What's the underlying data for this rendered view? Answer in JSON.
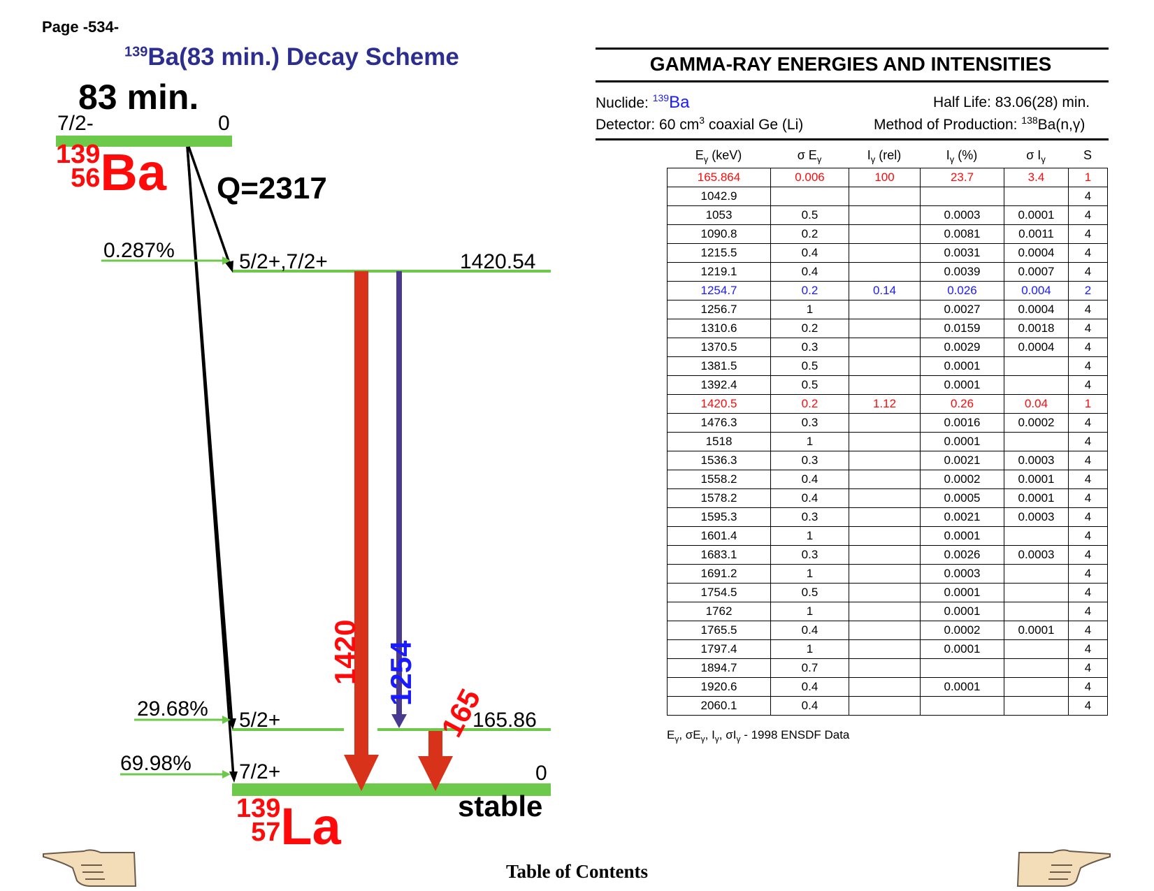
{
  "page": {
    "number": "Page -534-",
    "toc": "Table of Contents"
  },
  "scheme": {
    "title_mass": "139",
    "title_text": "Ba(83 min.) Decay Scheme",
    "half_life": "83 min.",
    "q_value": "Q=2317",
    "stable_label": "stable",
    "parent": {
      "mass": "139",
      "z": "56",
      "symbol": "Ba",
      "spin": "7/2-",
      "energy": "0"
    },
    "daughter": {
      "mass": "139",
      "z": "57",
      "symbol": "La"
    },
    "levels": [
      {
        "spin": "5/2+,7/2+",
        "energy": "1420.54",
        "branch": "0.287%"
      },
      {
        "spin": "5/2+",
        "energy": "165.86",
        "branch": "29.68%"
      },
      {
        "spin": "7/2+",
        "energy": "0",
        "branch": "69.98%"
      }
    ],
    "gammas": [
      {
        "label": "1420",
        "color": "#ff0a0a"
      },
      {
        "label": "1254",
        "color": "#1a1aff"
      },
      {
        "label": "165",
        "color": "#ff0a0a"
      }
    ],
    "colors": {
      "level": "#6cc94a",
      "strong_gamma": "#d9321a",
      "weak_gamma": "#4a3a8f",
      "accent_red": "#ff0a0a",
      "title_blue": "#2b2d8f"
    }
  },
  "table": {
    "heading": "GAMMA-RAY ENERGIES AND INTENSITIES",
    "nuclide_label": "Nuclide: ",
    "nuclide_mass": "139",
    "nuclide_symbol": "Ba",
    "half_life": "Half Life: 83.06(28) min.",
    "detector_a": "Detector: 60 cm",
    "detector_exp": "3",
    "detector_b": " coaxial Ge (Li)",
    "method_a": "Method of Production: ",
    "method_exp": "138",
    "method_b": "Ba(n,γ)",
    "columns": [
      {
        "main": "E",
        "sub": "γ",
        "tail": " (keV)"
      },
      {
        "main": "σ E",
        "sub": "γ",
        "tail": ""
      },
      {
        "main": "I",
        "sub": "γ",
        "tail": " (rel)"
      },
      {
        "main": "I",
        "sub": "γ",
        "tail": " (%)"
      },
      {
        "main": "σ I",
        "sub": "γ",
        "tail": ""
      },
      {
        "main": "S",
        "sub": "",
        "tail": ""
      }
    ],
    "rows": [
      {
        "e": "165.864",
        "se": "0.006",
        "irel": "100",
        "ipct": "23.7",
        "si": "3.4",
        "s": "1",
        "style": "red"
      },
      {
        "e": "1042.9",
        "se": "",
        "irel": "",
        "ipct": "",
        "si": "",
        "s": "4",
        "style": ""
      },
      {
        "e": "1053",
        "se": "0.5",
        "irel": "",
        "ipct": "0.0003",
        "si": "0.0001",
        "s": "4",
        "style": ""
      },
      {
        "e": "1090.8",
        "se": "0.2",
        "irel": "",
        "ipct": "0.0081",
        "si": "0.0011",
        "s": "4",
        "style": ""
      },
      {
        "e": "1215.5",
        "se": "0.4",
        "irel": "",
        "ipct": "0.0031",
        "si": "0.0004",
        "s": "4",
        "style": ""
      },
      {
        "e": "1219.1",
        "se": "0.4",
        "irel": "",
        "ipct": "0.0039",
        "si": "0.0007",
        "s": "4",
        "style": ""
      },
      {
        "e": "1254.7",
        "se": "0.2",
        "irel": "0.14",
        "ipct": "0.026",
        "si": "0.004",
        "s": "2",
        "style": "blue"
      },
      {
        "e": "1256.7",
        "se": "1",
        "irel": "",
        "ipct": "0.0027",
        "si": "0.0004",
        "s": "4",
        "style": ""
      },
      {
        "e": "1310.6",
        "se": "0.2",
        "irel": "",
        "ipct": "0.0159",
        "si": "0.0018",
        "s": "4",
        "style": ""
      },
      {
        "e": "1370.5",
        "se": "0.3",
        "irel": "",
        "ipct": "0.0029",
        "si": "0.0004",
        "s": "4",
        "style": ""
      },
      {
        "e": "1381.5",
        "se": "0.5",
        "irel": "",
        "ipct": "0.0001",
        "si": "",
        "s": "4",
        "style": ""
      },
      {
        "e": "1392.4",
        "se": "0.5",
        "irel": "",
        "ipct": "0.0001",
        "si": "",
        "s": "4",
        "style": ""
      },
      {
        "e": "1420.5",
        "se": "0.2",
        "irel": "1.12",
        "ipct": "0.26",
        "si": "0.04",
        "s": "1",
        "style": "red"
      },
      {
        "e": "1476.3",
        "se": "0.3",
        "irel": "",
        "ipct": "0.0016",
        "si": "0.0002",
        "s": "4",
        "style": ""
      },
      {
        "e": "1518",
        "se": "1",
        "irel": "",
        "ipct": "0.0001",
        "si": "",
        "s": "4",
        "style": ""
      },
      {
        "e": "1536.3",
        "se": "0.3",
        "irel": "",
        "ipct": "0.0021",
        "si": "0.0003",
        "s": "4",
        "style": ""
      },
      {
        "e": "1558.2",
        "se": "0.4",
        "irel": "",
        "ipct": "0.0002",
        "si": "0.0001",
        "s": "4",
        "style": ""
      },
      {
        "e": "1578.2",
        "se": "0.4",
        "irel": "",
        "ipct": "0.0005",
        "si": "0.0001",
        "s": "4",
        "style": ""
      },
      {
        "e": "1595.3",
        "se": "0.3",
        "irel": "",
        "ipct": "0.0021",
        "si": "0.0003",
        "s": "4",
        "style": ""
      },
      {
        "e": "1601.4",
        "se": "1",
        "irel": "",
        "ipct": "0.0001",
        "si": "",
        "s": "4",
        "style": ""
      },
      {
        "e": "1683.1",
        "se": "0.3",
        "irel": "",
        "ipct": "0.0026",
        "si": "0.0003",
        "s": "4",
        "style": ""
      },
      {
        "e": "1691.2",
        "se": "1",
        "irel": "",
        "ipct": "0.0003",
        "si": "",
        "s": "4",
        "style": ""
      },
      {
        "e": "1754.5",
        "se": "0.5",
        "irel": "",
        "ipct": "0.0001",
        "si": "",
        "s": "4",
        "style": ""
      },
      {
        "e": "1762",
        "se": "1",
        "irel": "",
        "ipct": "0.0001",
        "si": "",
        "s": "4",
        "style": ""
      },
      {
        "e": "1765.5",
        "se": "0.4",
        "irel": "",
        "ipct": "0.0002",
        "si": "0.0001",
        "s": "4",
        "style": ""
      },
      {
        "e": "1797.4",
        "se": "1",
        "irel": "",
        "ipct": "0.0001",
        "si": "",
        "s": "4",
        "style": ""
      },
      {
        "e": "1894.7",
        "se": "0.7",
        "irel": "",
        "ipct": "",
        "si": "",
        "s": "4",
        "style": ""
      },
      {
        "e": "1920.6",
        "se": "0.4",
        "irel": "",
        "ipct": "0.0001",
        "si": "",
        "s": "4",
        "style": ""
      },
      {
        "e": "2060.1",
        "se": "0.4",
        "irel": "",
        "ipct": "",
        "si": "",
        "s": "4",
        "style": ""
      }
    ],
    "footnote_tail": " - 1998 ENSDF Data"
  }
}
